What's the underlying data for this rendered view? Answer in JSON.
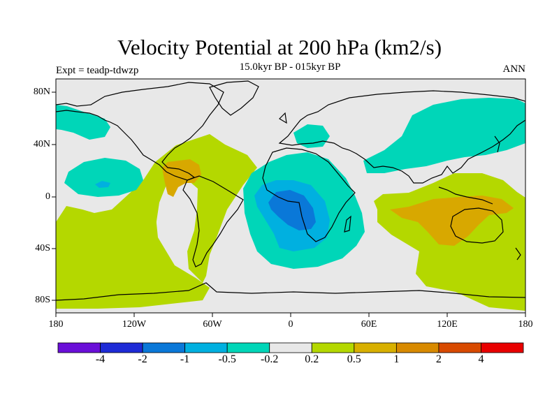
{
  "map": {
    "title": "Velocity Potential at 200 hPa (km2/s)",
    "subtitle": "15.0kyr BP - 015kyr BP",
    "experiment_label": "Expt = teadp-tdwzp",
    "season_label": "ANN",
    "projection": "cylindrical equidistant",
    "lat_labels": [
      "80N",
      "40N",
      "0",
      "40S",
      "80S"
    ],
    "lon_labels": [
      "180",
      "120W",
      "60W",
      "0",
      "60E",
      "120E",
      "180"
    ]
  },
  "colorbar": {
    "colors": [
      "#6a0fd8",
      "#1e2bd6",
      "#0a78d8",
      "#00b0e0",
      "#00d6b8",
      "#e8e8e8",
      "#b4d800",
      "#d8b000",
      "#d88a00",
      "#d84a00",
      "#e80000"
    ],
    "labels": [
      "-4",
      "-2",
      "-1",
      "-0.5",
      "-0.2",
      "0.2",
      "0.5",
      "1",
      "2",
      "4"
    ]
  },
  "fields": {
    "neutral": "#e8e8e8",
    "green": "#b4d800",
    "orange": "#d8a800",
    "teal": "#00d6b8",
    "cyan": "#00b0e0",
    "blue": "#0a78d8",
    "coast": "#000000"
  }
}
